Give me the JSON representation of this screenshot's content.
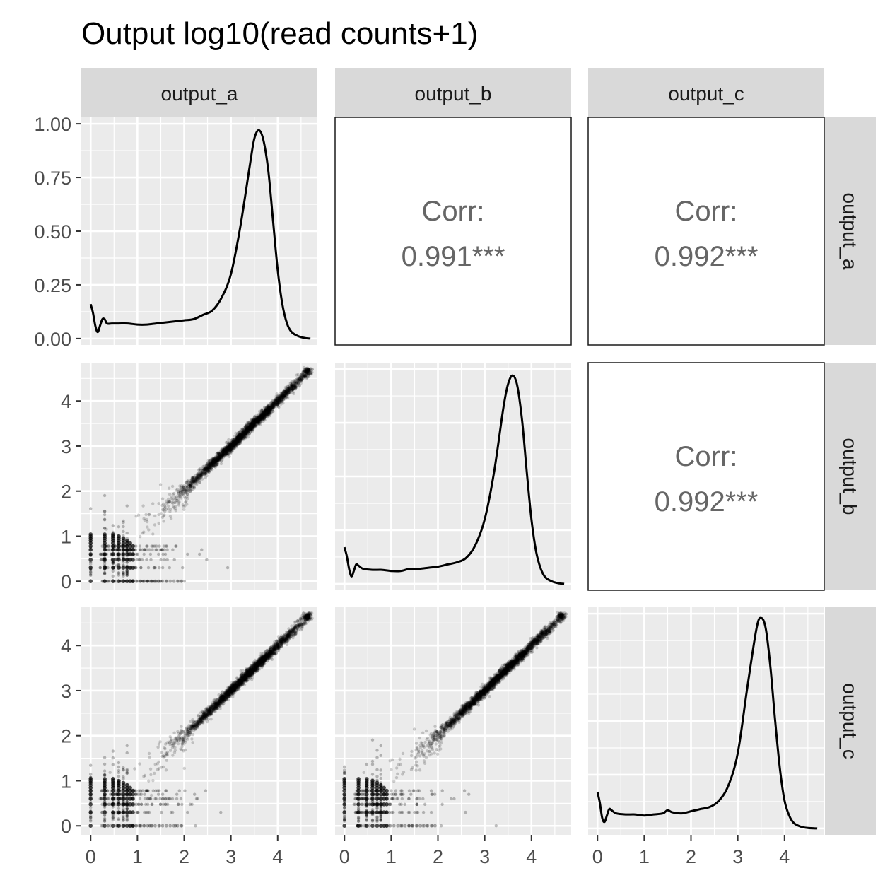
{
  "chart_data": {
    "type": "scatter",
    "kind": "pairs-matrix",
    "title": "Output log10(read counts+1)",
    "variables": [
      "output_a",
      "output_b",
      "output_c"
    ],
    "axis_range": [
      -0.2,
      4.85
    ],
    "density_ylim": [
      -0.03,
      1.03
    ],
    "x_ticks": [
      0,
      1,
      2,
      3,
      4
    ],
    "scatter_y_ticks": [
      0,
      1,
      2,
      3,
      4
    ],
    "density_y_ticks": [
      "0.00",
      "0.25",
      "0.50",
      "0.75",
      "1.00"
    ],
    "grid": true,
    "correlations": [
      {
        "row": "output_a",
        "col": "output_b",
        "label": "Corr:",
        "value": "0.991***"
      },
      {
        "row": "output_a",
        "col": "output_c",
        "label": "Corr:",
        "value": "0.992***"
      },
      {
        "row": "output_b",
        "col": "output_c",
        "label": "Corr:",
        "value": "0.992***"
      }
    ],
    "densities": {
      "output_a": [
        [
          0.0,
          0.16
        ],
        [
          0.05,
          0.12
        ],
        [
          0.1,
          0.06
        ],
        [
          0.15,
          0.03
        ],
        [
          0.2,
          0.06
        ],
        [
          0.25,
          0.09
        ],
        [
          0.3,
          0.09
        ],
        [
          0.35,
          0.07
        ],
        [
          0.45,
          0.07
        ],
        [
          0.6,
          0.07
        ],
        [
          0.8,
          0.07
        ],
        [
          1.0,
          0.065
        ],
        [
          1.2,
          0.065
        ],
        [
          1.4,
          0.07
        ],
        [
          1.6,
          0.075
        ],
        [
          1.8,
          0.08
        ],
        [
          2.0,
          0.085
        ],
        [
          2.2,
          0.09
        ],
        [
          2.4,
          0.11
        ],
        [
          2.6,
          0.13
        ],
        [
          2.8,
          0.19
        ],
        [
          3.0,
          0.3
        ],
        [
          3.2,
          0.52
        ],
        [
          3.4,
          0.8
        ],
        [
          3.5,
          0.93
        ],
        [
          3.6,
          0.97
        ],
        [
          3.7,
          0.92
        ],
        [
          3.8,
          0.78
        ],
        [
          3.9,
          0.55
        ],
        [
          4.0,
          0.32
        ],
        [
          4.1,
          0.16
        ],
        [
          4.2,
          0.07
        ],
        [
          4.3,
          0.03
        ],
        [
          4.45,
          0.01
        ],
        [
          4.6,
          0.002
        ],
        [
          4.7,
          0.0
        ]
      ],
      "output_b": [
        [
          0.0,
          0.17
        ],
        [
          0.05,
          0.13
        ],
        [
          0.1,
          0.07
        ],
        [
          0.15,
          0.035
        ],
        [
          0.2,
          0.06
        ],
        [
          0.25,
          0.09
        ],
        [
          0.3,
          0.085
        ],
        [
          0.4,
          0.07
        ],
        [
          0.6,
          0.065
        ],
        [
          0.8,
          0.065
        ],
        [
          1.0,
          0.06
        ],
        [
          1.2,
          0.06
        ],
        [
          1.4,
          0.07
        ],
        [
          1.6,
          0.07
        ],
        [
          1.8,
          0.075
        ],
        [
          2.0,
          0.08
        ],
        [
          2.2,
          0.09
        ],
        [
          2.4,
          0.1
        ],
        [
          2.6,
          0.12
        ],
        [
          2.8,
          0.18
        ],
        [
          3.0,
          0.3
        ],
        [
          3.2,
          0.52
        ],
        [
          3.4,
          0.82
        ],
        [
          3.5,
          0.93
        ],
        [
          3.6,
          0.97
        ],
        [
          3.7,
          0.92
        ],
        [
          3.8,
          0.76
        ],
        [
          3.9,
          0.52
        ],
        [
          4.0,
          0.3
        ],
        [
          4.1,
          0.15
        ],
        [
          4.2,
          0.07
        ],
        [
          4.3,
          0.03
        ],
        [
          4.45,
          0.01
        ],
        [
          4.6,
          0.002
        ],
        [
          4.7,
          0.0
        ]
      ],
      "output_c": [
        [
          0.0,
          0.17
        ],
        [
          0.05,
          0.12
        ],
        [
          0.1,
          0.05
        ],
        [
          0.15,
          0.03
        ],
        [
          0.2,
          0.06
        ],
        [
          0.25,
          0.09
        ],
        [
          0.3,
          0.085
        ],
        [
          0.4,
          0.07
        ],
        [
          0.6,
          0.065
        ],
        [
          0.8,
          0.065
        ],
        [
          1.0,
          0.06
        ],
        [
          1.2,
          0.065
        ],
        [
          1.4,
          0.07
        ],
        [
          1.5,
          0.085
        ],
        [
          1.6,
          0.075
        ],
        [
          1.8,
          0.07
        ],
        [
          2.0,
          0.08
        ],
        [
          2.2,
          0.09
        ],
        [
          2.4,
          0.1
        ],
        [
          2.6,
          0.13
        ],
        [
          2.8,
          0.2
        ],
        [
          3.0,
          0.35
        ],
        [
          3.2,
          0.65
        ],
        [
          3.4,
          0.93
        ],
        [
          3.5,
          0.98
        ],
        [
          3.6,
          0.93
        ],
        [
          3.7,
          0.75
        ],
        [
          3.8,
          0.5
        ],
        [
          3.9,
          0.28
        ],
        [
          4.0,
          0.13
        ],
        [
          4.1,
          0.06
        ],
        [
          4.2,
          0.025
        ],
        [
          4.35,
          0.008
        ],
        [
          4.5,
          0.002
        ],
        [
          4.7,
          0.0
        ]
      ]
    }
  }
}
